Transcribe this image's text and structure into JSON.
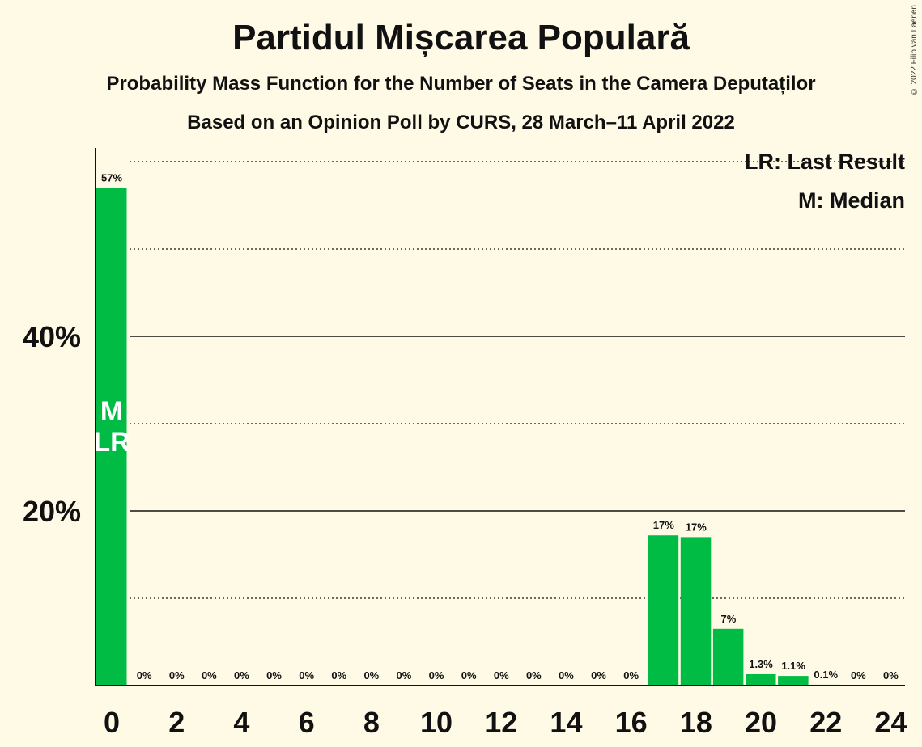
{
  "chart_data": {
    "type": "bar",
    "title": "Partidul Mișcarea Populară",
    "subtitle": "Probability Mass Function for the Number of Seats in the Camera Deputaților",
    "subtitle2": "Based on an Opinion Poll by CURS, 28 March–11 April 2022",
    "copyright": "© 2022 Filip van Laenen",
    "x": [
      0,
      1,
      2,
      3,
      4,
      5,
      6,
      7,
      8,
      9,
      10,
      11,
      12,
      13,
      14,
      15,
      16,
      17,
      18,
      19,
      20,
      21,
      22,
      23,
      24
    ],
    "values": [
      57,
      0,
      0,
      0,
      0,
      0,
      0,
      0,
      0,
      0,
      0,
      0,
      0,
      0,
      0,
      0,
      0,
      17.2,
      17,
      6.5,
      1.3,
      1.1,
      0.1,
      0,
      0
    ],
    "bar_labels": [
      "57%",
      "0%",
      "0%",
      "0%",
      "0%",
      "0%",
      "0%",
      "0%",
      "0%",
      "0%",
      "0%",
      "0%",
      "0%",
      "0%",
      "0%",
      "0%",
      "0%",
      "17%",
      "17%",
      "7%",
      "1.3%",
      "1.1%",
      "0.1%",
      "0%",
      "0%"
    ],
    "x_tick_labels": [
      "0",
      "2",
      "4",
      "6",
      "8",
      "10",
      "12",
      "14",
      "16",
      "18",
      "20",
      "22",
      "24"
    ],
    "x_tick_values": [
      0,
      2,
      4,
      6,
      8,
      10,
      12,
      14,
      16,
      18,
      20,
      22,
      24
    ],
    "y_tick_labels": [
      "20%",
      "40%"
    ],
    "y_tick_values": [
      20,
      40
    ],
    "ylim": [
      0,
      62
    ],
    "legend": [
      "LR: Last Result",
      "M: Median"
    ],
    "legend_position": "top-right",
    "median_seat": 0,
    "last_result_seat": 0,
    "median_marker": "M",
    "last_result_marker": "LR",
    "bar_color": "#00BB44",
    "grid": true
  }
}
